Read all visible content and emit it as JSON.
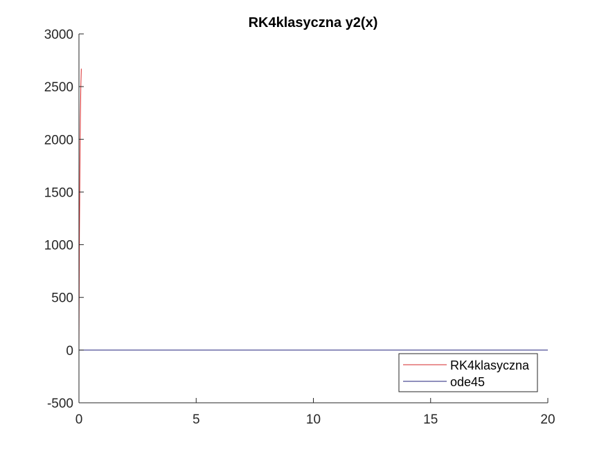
{
  "chart_data": {
    "type": "line",
    "title": "RK4klasyczna y2(x)",
    "xlabel": "",
    "ylabel": "",
    "xlim": [
      0,
      20
    ],
    "ylim": [
      -500,
      3000
    ],
    "xticks": [
      0,
      5,
      10,
      15,
      20
    ],
    "xtick_labels": [
      "0",
      "5",
      "10",
      "15",
      "20"
    ],
    "yticks": [
      -500,
      0,
      500,
      1000,
      1500,
      2000,
      2500,
      3000
    ],
    "ytick_labels": [
      "-500",
      "0",
      "500",
      "1000",
      "1500",
      "2000",
      "2500",
      "3000"
    ],
    "grid": false,
    "legend_position": "bottom-right",
    "series": [
      {
        "name": "RK4klasyczna",
        "color": "#d62728",
        "x": [
          0,
          0.02,
          0.04,
          0.06,
          0.08,
          0.1
        ],
        "y": [
          0,
          1100,
          1700,
          2200,
          2500,
          2670
        ]
      },
      {
        "name": "ode45",
        "color": "#1f1f7a",
        "x": [
          0,
          5,
          10,
          15,
          20
        ],
        "y": [
          0,
          0,
          0,
          0,
          0
        ]
      }
    ]
  }
}
